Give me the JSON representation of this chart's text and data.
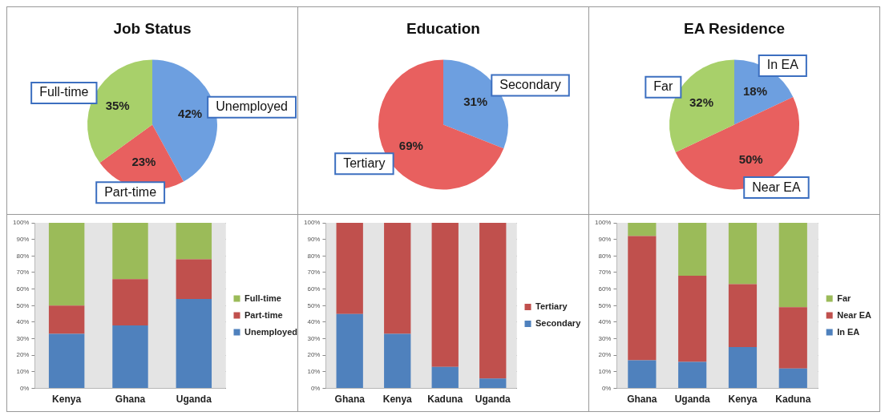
{
  "chart_data": [
    {
      "type": "pie",
      "title": "Job Status",
      "categories": [
        "Unemployed",
        "Part-time",
        "Full-time"
      ],
      "values": [
        42,
        23,
        35
      ],
      "colors": [
        "#6d9fe0",
        "#e8605f",
        "#a8d06a"
      ],
      "value_labels": [
        "42%",
        "23%",
        "35%"
      ]
    },
    {
      "type": "pie",
      "title": "Education",
      "categories": [
        "Secondary",
        "Tertiary"
      ],
      "values": [
        31,
        69
      ],
      "colors": [
        "#6d9fe0",
        "#e8605f"
      ],
      "value_labels": [
        "31%",
        "69%"
      ]
    },
    {
      "type": "pie",
      "title": "EA Residence",
      "categories": [
        "In EA",
        "Near EA",
        "Far"
      ],
      "values": [
        18,
        50,
        32
      ],
      "colors": [
        "#6d9fe0",
        "#e8605f",
        "#a8d06a"
      ],
      "value_labels": [
        "18%",
        "50%",
        "32%"
      ]
    },
    {
      "type": "bar",
      "stacked": true,
      "categories": [
        "Kenya",
        "Ghana",
        "Uganda"
      ],
      "series": [
        {
          "name": "Unemployed",
          "color": "#4f81bd",
          "values": [
            33,
            38,
            54
          ]
        },
        {
          "name": "Part-time",
          "color": "#c0504d",
          "values": [
            17,
            28,
            24
          ]
        },
        {
          "name": "Full-time",
          "color": "#9bbb59",
          "values": [
            50,
            34,
            22
          ]
        }
      ],
      "ylim": [
        0,
        100
      ],
      "yticks": [
        {
          "value": 0,
          "label": "0%"
        },
        {
          "value": 10,
          "label": "10%"
        },
        {
          "value": 20,
          "label": "20%"
        },
        {
          "value": 30,
          "label": "30%"
        },
        {
          "value": 40,
          "label": "40%"
        },
        {
          "value": 50,
          "label": "50%"
        },
        {
          "value": 60,
          "label": "60%"
        },
        {
          "value": 70,
          "label": "70%"
        },
        {
          "value": 80,
          "label": "80%"
        },
        {
          "value": 90,
          "label": "90%"
        },
        {
          "value": 100,
          "label": "100%"
        }
      ],
      "grid": "y",
      "legend": "right"
    },
    {
      "type": "bar",
      "stacked": true,
      "categories": [
        "Ghana",
        "Kenya",
        "Kaduna",
        "Uganda"
      ],
      "series": [
        {
          "name": "Secondary",
          "color": "#4f81bd",
          "values": [
            45,
            33,
            13,
            6
          ]
        },
        {
          "name": "Tertiary",
          "color": "#c0504d",
          "values": [
            55,
            67,
            87,
            94
          ]
        }
      ],
      "ylim": [
        0,
        100
      ],
      "yticks": [
        {
          "value": 0,
          "label": "0%"
        },
        {
          "value": 10,
          "label": "10%"
        },
        {
          "value": 20,
          "label": "20%"
        },
        {
          "value": 30,
          "label": "30%"
        },
        {
          "value": 40,
          "label": "40%"
        },
        {
          "value": 50,
          "label": "50%"
        },
        {
          "value": 60,
          "label": "60%"
        },
        {
          "value": 70,
          "label": "70%"
        },
        {
          "value": 80,
          "label": "80%"
        },
        {
          "value": 90,
          "label": "90%"
        },
        {
          "value": 100,
          "label": "100%"
        }
      ],
      "grid": "y",
      "legend": "right"
    },
    {
      "type": "bar",
      "stacked": true,
      "categories": [
        "Ghana",
        "Uganda",
        "Kenya",
        "Kaduna"
      ],
      "series": [
        {
          "name": "In EA",
          "color": "#4f81bd",
          "values": [
            17,
            16,
            25,
            12
          ]
        },
        {
          "name": "Near EA",
          "color": "#c0504d",
          "values": [
            75,
            52,
            38,
            37
          ]
        },
        {
          "name": "Far",
          "color": "#9bbb59",
          "values": [
            8,
            32,
            37,
            51
          ]
        }
      ],
      "ylim": [
        0,
        100
      ],
      "yticks": [
        {
          "value": 0,
          "label": "0%"
        },
        {
          "value": 10,
          "label": "10%"
        },
        {
          "value": 20,
          "label": "20%"
        },
        {
          "value": 30,
          "label": "30%"
        },
        {
          "value": 40,
          "label": "40%"
        },
        {
          "value": 50,
          "label": "50%"
        },
        {
          "value": 60,
          "label": "60%"
        },
        {
          "value": 70,
          "label": "70%"
        },
        {
          "value": 80,
          "label": "80%"
        },
        {
          "value": 90,
          "label": "90%"
        },
        {
          "value": 100,
          "label": "100%"
        }
      ],
      "grid": "y",
      "legend": "right"
    }
  ]
}
